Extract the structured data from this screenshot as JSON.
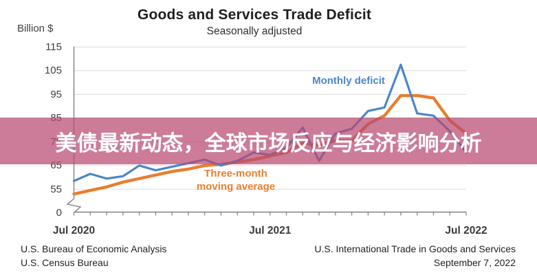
{
  "banner": {
    "text": "美债最新动态，全球市场反应与经济影响分析",
    "bg_color": "#b84a70",
    "bg_opacity": 0.72,
    "text_color": "#ffffff"
  },
  "header": {
    "title": "Goods and Services Trade Deficit",
    "subtitle": "Seasonally adjusted",
    "y_axis_unit": "Billion $"
  },
  "footer": {
    "left_line1": "U.S. Bureau of Economic Analysis",
    "left_line2": "U.S. Census Bureau",
    "right_line1": "U.S. International Trade in Goods and Services",
    "right_line2": "September 7, 2022"
  },
  "chart_data": {
    "type": "line",
    "title": "Goods and Services Trade Deficit",
    "subtitle": "Seasonally adjusted",
    "xlabel": "",
    "ylabel": "Billion $",
    "ylim": [
      50,
      115
    ],
    "y_ticks": [
      "115",
      "105",
      "95",
      "85",
      "75",
      "65",
      "55"
    ],
    "y_origin_label": "0",
    "y_axis_break": true,
    "grid": "horizontal-only",
    "legend_position": "inline-annotations",
    "x_tick_labels": [
      "Jul 2020",
      "Jul 2021",
      "Jul 2022"
    ],
    "x": [
      "Jul 2020",
      "Aug 2020",
      "Sep 2020",
      "Oct 2020",
      "Nov 2020",
      "Dec 2020",
      "Jan 2021",
      "Feb 2021",
      "Mar 2021",
      "Apr 2021",
      "May 2021",
      "Jun 2021",
      "Jul 2021",
      "Aug 2021",
      "Sep 2021",
      "Oct 2021",
      "Nov 2021",
      "Dec 2021",
      "Jan 2022",
      "Feb 2022",
      "Mar 2022",
      "Apr 2022",
      "May 2022",
      "Jun 2022",
      "Jul 2022"
    ],
    "series": [
      {
        "name": "Monthly deficit",
        "color": "#4a86c8",
        "values": [
          58.5,
          61.5,
          59.5,
          60.5,
          65,
          63,
          64.5,
          66,
          67.5,
          65,
          67,
          70.5,
          69.5,
          72.5,
          81,
          67,
          78.5,
          80.5,
          88,
          89.5,
          107.5,
          87,
          86,
          79.5,
          70.5
        ]
      },
      {
        "name": "Three-month moving average",
        "color": "#e87e2e",
        "values": [
          53,
          54.5,
          56,
          58,
          59.5,
          61,
          62.5,
          63.5,
          65,
          65.5,
          66.5,
          67.5,
          69,
          70.5,
          74.5,
          73.5,
          75.5,
          75.5,
          82.5,
          86,
          94.5,
          94.5,
          93.5,
          84,
          78.5
        ]
      }
    ],
    "annotations": [
      {
        "text": "Monthly deficit",
        "color": "#4a86c8"
      },
      {
        "text": "Three-month",
        "color": "#e87e2e"
      },
      {
        "text": "moving average",
        "color": "#e87e2e"
      }
    ],
    "axis_color": "#808080",
    "grid_color": "#dcdcdc"
  }
}
